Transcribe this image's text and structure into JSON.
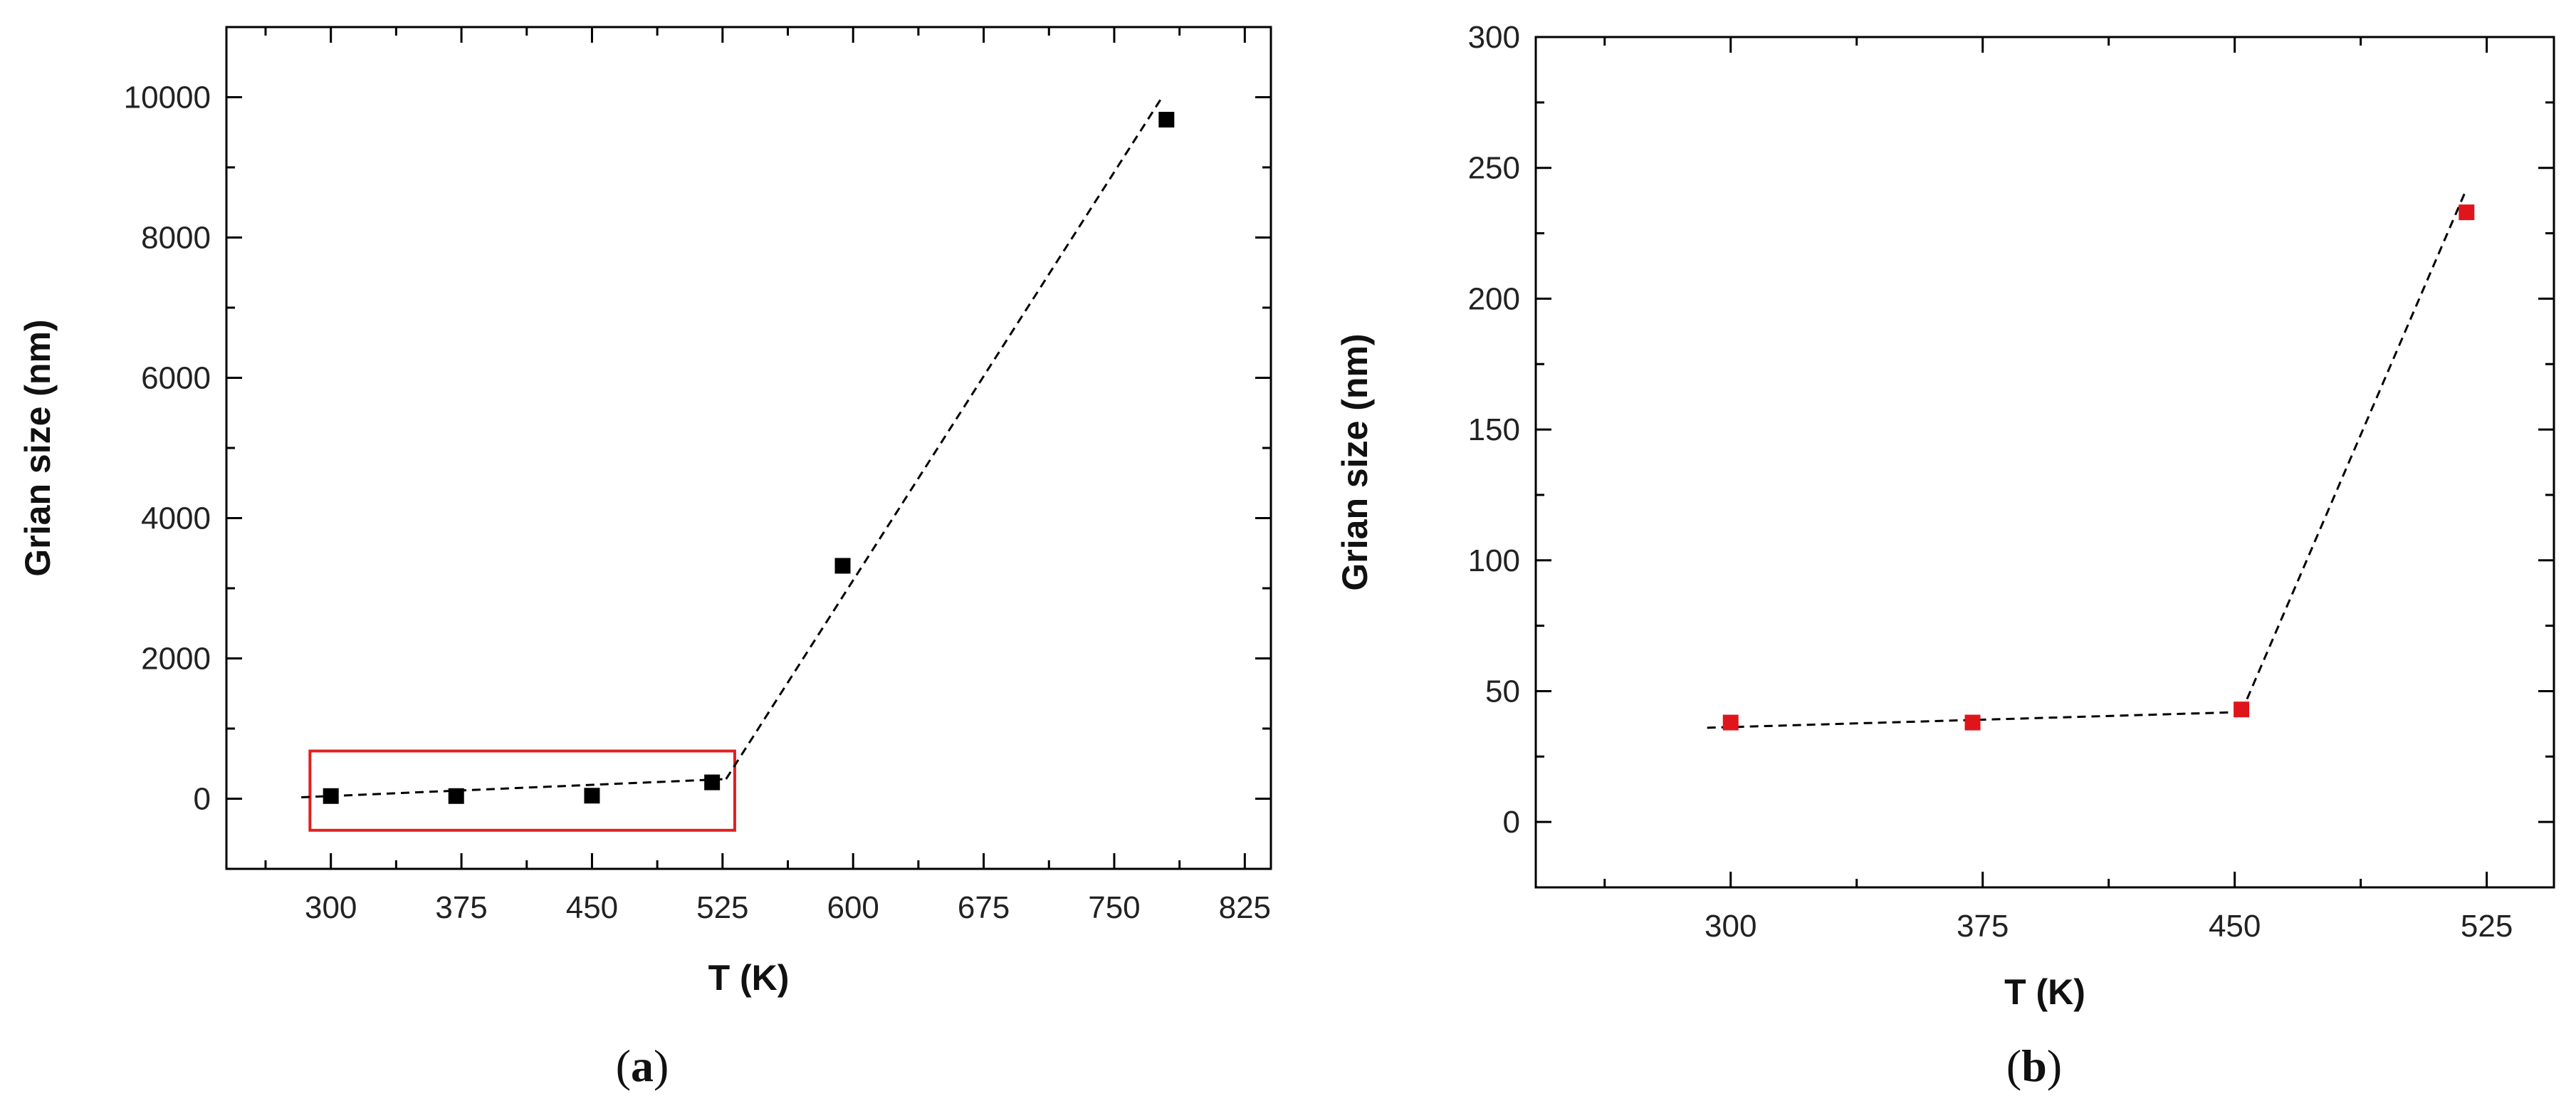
{
  "chart_data": [
    {
      "type": "scatter",
      "panel_label": "a",
      "xlabel": "T (K)",
      "ylabel": "Grian size (nm)",
      "xlim": [
        240,
        840
      ],
      "ylim": [
        -1000,
        11000
      ],
      "xticks": [
        300,
        375,
        450,
        525,
        600,
        675,
        750,
        825
      ],
      "yticks": [
        0,
        2000,
        4000,
        6000,
        8000,
        10000
      ],
      "x": [
        300,
        372,
        450,
        519,
        594,
        780
      ],
      "y": [
        38,
        38,
        43,
        233,
        3320,
        9680
      ],
      "marker_color": "#000000",
      "fit_lines": [
        {
          "x": [
            283,
            527
          ],
          "y": [
            20,
            280
          ]
        },
        {
          "x": [
            527,
            778
          ],
          "y": [
            280,
            10020
          ]
        }
      ],
      "highlight_box": {
        "x": [
          288,
          532
        ],
        "y": [
          -450,
          680
        ],
        "color": "#e02020"
      }
    },
    {
      "type": "scatter",
      "panel_label": "b",
      "xlabel": "T (K)",
      "ylabel": "Grian size (nm)",
      "xlim": [
        242,
        545
      ],
      "ylim": [
        -25,
        300
      ],
      "xticks": [
        300,
        375,
        450,
        525
      ],
      "yticks": [
        0,
        50,
        100,
        150,
        200,
        250,
        300
      ],
      "x": [
        300,
        372,
        452,
        519
      ],
      "y": [
        38,
        38,
        43,
        233
      ],
      "marker_color": "#e0151b",
      "fit_lines": [
        {
          "x": [
            293,
            452
          ],
          "y": [
            36,
            42
          ]
        },
        {
          "x": [
            452,
            519
          ],
          "y": [
            42,
            242
          ]
        }
      ]
    }
  ]
}
